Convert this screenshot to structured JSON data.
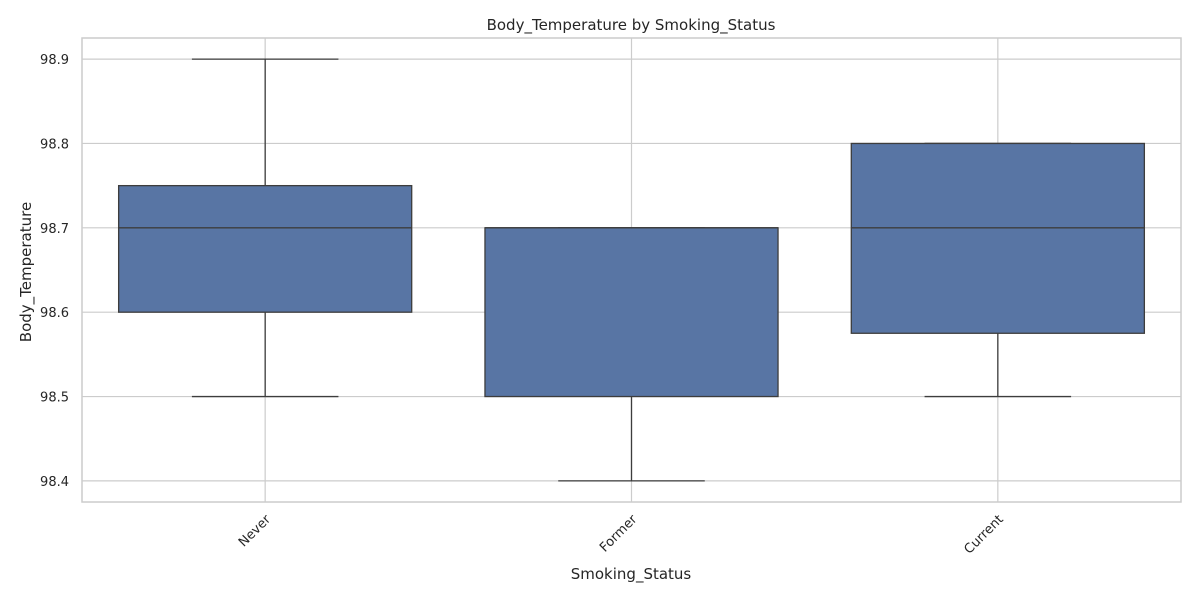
{
  "chart_data": {
    "type": "box",
    "title": "Body_Temperature by Smoking_Status",
    "xlabel": "Smoking_Status",
    "ylabel": "Body_Temperature",
    "categories": [
      "Never",
      "Former",
      "Current"
    ],
    "boxes": [
      {
        "category": "Never",
        "whisker_low": 98.5,
        "q1": 98.6,
        "median": 98.7,
        "q3": 98.75,
        "whisker_high": 98.9
      },
      {
        "category": "Former",
        "whisker_low": 98.4,
        "q1": 98.5,
        "median": 98.7,
        "q3": 98.7,
        "whisker_high": 98.7
      },
      {
        "category": "Current",
        "whisker_low": 98.5,
        "q1": 98.575,
        "median": 98.7,
        "q3": 98.8,
        "whisker_high": 98.8
      }
    ],
    "yticks": [
      "98.4",
      "98.5",
      "98.6",
      "98.7",
      "98.8",
      "98.9"
    ],
    "ylim": [
      98.375,
      98.925
    ],
    "grid": true,
    "x_tick_rotation_deg": 45,
    "colors": {
      "box_fill": "#5875a4",
      "box_edge": "#3d3d3d",
      "grid": "#cccccc",
      "frame": "#cccccc"
    }
  }
}
